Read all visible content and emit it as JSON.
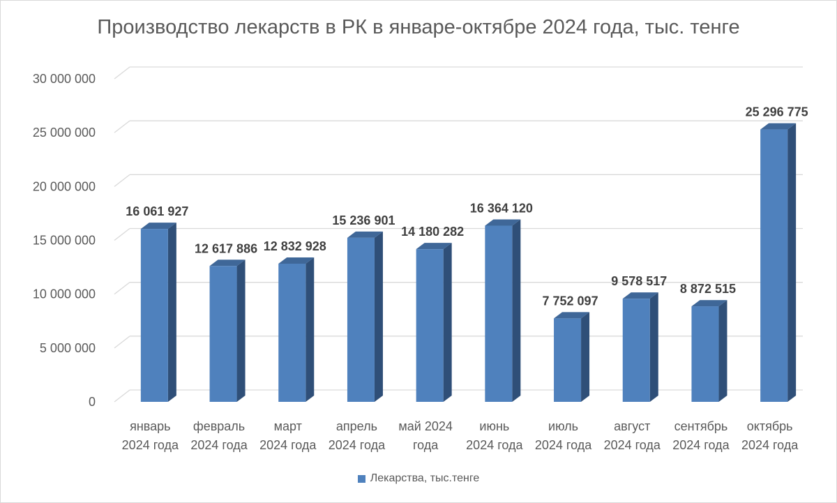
{
  "chart_data": {
    "type": "bar",
    "title": "Производство лекарств в РК в январе-октябре 2024 года, тыс. тенге",
    "categories": [
      [
        "январь",
        "2024 года"
      ],
      [
        "февраль",
        "2024 года"
      ],
      [
        "март",
        "2024 года"
      ],
      [
        "апрель",
        "2024 года"
      ],
      [
        "май 2024",
        "года"
      ],
      [
        "июнь",
        "2024 года"
      ],
      [
        "июль",
        "2024 года"
      ],
      [
        "август",
        "2024 года"
      ],
      [
        "сентябрь",
        "2024 года"
      ],
      [
        "октябрь",
        "2024 года"
      ]
    ],
    "series": [
      {
        "name": "Лекарства, тыс.тенге",
        "values": [
          16061927,
          12617886,
          12832928,
          15236901,
          14180282,
          16364120,
          7752097,
          9578517,
          8872515,
          25296775
        ],
        "labels": [
          "16 061 927",
          "12 617 886",
          "12 832 928",
          "15 236 901",
          "14 180 282",
          "16 364 120",
          "7 752 097",
          "9 578 517",
          "8 872 515",
          "25 296 775"
        ]
      }
    ],
    "ylim": [
      0,
      30000000
    ],
    "yticks": [
      0,
      5000000,
      10000000,
      15000000,
      20000000,
      25000000,
      30000000
    ],
    "ytick_labels": [
      "0",
      "5 000 000",
      "10 000 000",
      "15 000 000",
      "20 000 000",
      "25 000 000",
      "30 000 000"
    ],
    "grid": true,
    "legend_position": "bottom",
    "style": "3d-column",
    "colors": {
      "front": "#4f81bd",
      "side": "#2f4f78",
      "top": "#3f6798",
      "grid": "#d9d9d9",
      "text": "#595959"
    }
  }
}
